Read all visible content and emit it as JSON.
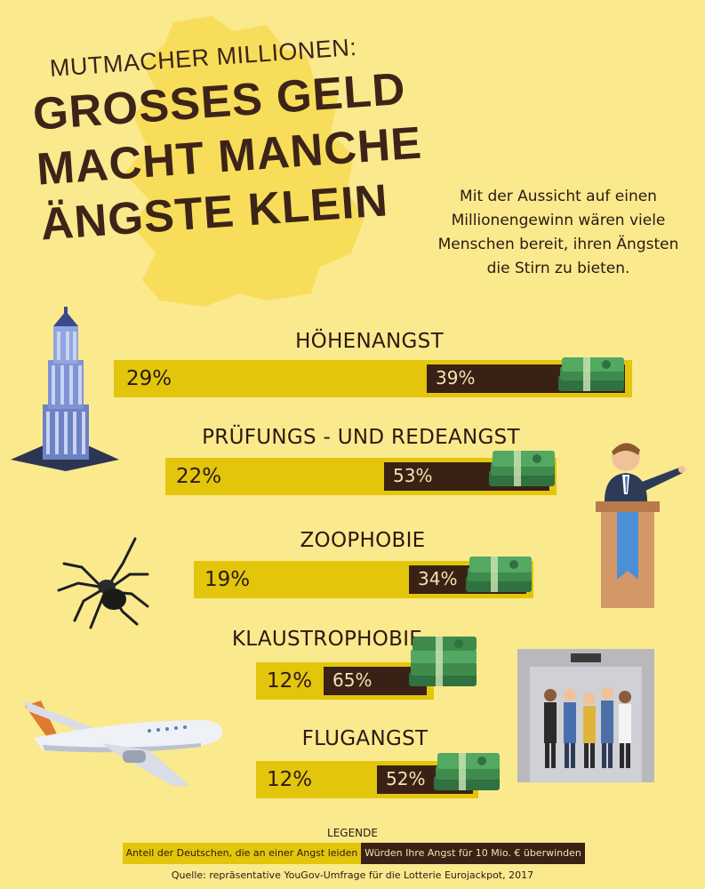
{
  "header": {
    "kicker": "MUTMACHER MILLIONEN:",
    "headline_lines": [
      "GROSSES GELD",
      "MACHT MANCHE",
      "ÄNGSTE KLEIN"
    ],
    "intro": "Mit der Aussicht auf einen Millionengewinn wären viele Menschen bereit, ihren Ängsten die Stirn zu bieten."
  },
  "legend": {
    "title": "LEGENDE",
    "share_label": "Anteil der Deutschen, die an einer Angst leiden",
    "overcome_label": "Würden Ihre Angst für 10 Mio. € überwinden"
  },
  "source": "Quelle: repräsentative YouGov-Umfrage für die Lotterie Eurojackpot, 2017",
  "colors": {
    "background": "#fbe98e",
    "share_bar": "#e3c50c",
    "overcome_bar": "#3a2115",
    "headline": "#3d2418",
    "money": "#3e8b4c"
  },
  "icons": [
    "skyscraper-illustration",
    "speaker-illustration",
    "spider-illustration",
    "elevator-illustration",
    "airplane-illustration",
    "money-stack-icon"
  ],
  "chart_data": {
    "type": "bar",
    "categories": [
      "HÖHENANGST",
      "PRÜFUNGS - UND REDEANGST",
      "ZOOPHOBIE",
      "KLAUSTROPHOBIE",
      "FLUGANGST"
    ],
    "series": [
      {
        "name": "Anteil der Deutschen, die an einer Angst leiden",
        "values": [
          29,
          22,
          19,
          12,
          12
        ],
        "labels": [
          "29%",
          "22%",
          "19%",
          "12%",
          "12%"
        ]
      },
      {
        "name": "Würden Ihre Angst für 10 Mio. € überwinden",
        "values": [
          39,
          53,
          34,
          65,
          52
        ],
        "labels": [
          "39%",
          "53%",
          "34%",
          "65%",
          "52%"
        ]
      }
    ],
    "unit": "%"
  }
}
